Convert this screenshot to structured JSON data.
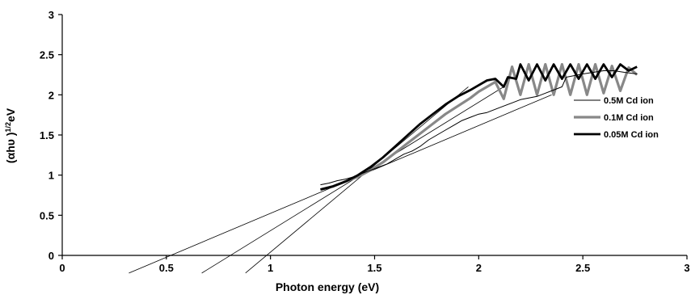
{
  "chart_data": {
    "type": "line",
    "xlabel": "Photon energy (eV)",
    "ylabel_main": "(αhυ )",
    "ylabel_sup": "1/2",
    "ylabel_unit": "eV",
    "xlim": [
      0,
      3
    ],
    "ylim": [
      0,
      3
    ],
    "xticks": [
      "0",
      "0.5",
      "1",
      "1.5",
      "2",
      "2.5",
      "3"
    ],
    "yticks": [
      "0",
      "0.5",
      "1",
      "1.5",
      "2",
      "2.5",
      "3"
    ],
    "grid": false,
    "legend_position": "right",
    "series": [
      {
        "name": "0.5M Cd ion",
        "color": "#000000",
        "width": "thin",
        "x": [
          1.24,
          1.28,
          1.32,
          1.36,
          1.4,
          1.44,
          1.48,
          1.52,
          1.56,
          1.6,
          1.64,
          1.68,
          1.72,
          1.76,
          1.8,
          1.84,
          1.88,
          1.92,
          1.96,
          2.0,
          2.04,
          2.08,
          2.12,
          2.16,
          2.2,
          2.24,
          2.28,
          2.32,
          2.36,
          2.4,
          2.42,
          2.46,
          2.5,
          2.55,
          2.6,
          2.65,
          2.7,
          2.76
        ],
        "y": [
          0.88,
          0.9,
          0.93,
          0.95,
          0.98,
          1.02,
          1.06,
          1.1,
          1.14,
          1.2,
          1.26,
          1.3,
          1.36,
          1.44,
          1.5,
          1.56,
          1.62,
          1.68,
          1.72,
          1.76,
          1.78,
          1.82,
          1.86,
          1.9,
          1.94,
          1.96,
          1.98,
          2.02,
          2.06,
          2.1,
          2.22,
          2.24,
          2.26,
          2.28,
          2.3,
          2.3,
          2.28,
          2.26
        ]
      },
      {
        "name": "0.1M Cd ion",
        "color": "#888888",
        "width": "medium",
        "x": [
          1.24,
          1.3,
          1.36,
          1.42,
          1.48,
          1.54,
          1.6,
          1.66,
          1.72,
          1.78,
          1.84,
          1.9,
          1.96,
          2.0,
          2.04,
          2.08,
          2.12,
          2.16,
          2.2,
          2.24,
          2.28,
          2.32,
          2.36,
          2.4,
          2.44,
          2.48,
          2.52,
          2.56,
          2.6,
          2.64,
          2.68,
          2.72,
          2.76
        ],
        "y": [
          0.82,
          0.86,
          0.92,
          0.98,
          1.06,
          1.16,
          1.28,
          1.4,
          1.52,
          1.64,
          1.76,
          1.86,
          1.96,
          2.04,
          2.1,
          2.16,
          1.95,
          2.35,
          2.0,
          2.38,
          2.0,
          2.38,
          2.0,
          2.38,
          2.0,
          2.38,
          2.0,
          2.38,
          2.02,
          2.36,
          2.05,
          2.34,
          2.25
        ]
      },
      {
        "name": "0.05M Cd ion",
        "color": "#000000",
        "width": "thick",
        "x": [
          1.24,
          1.3,
          1.36,
          1.42,
          1.48,
          1.54,
          1.6,
          1.66,
          1.72,
          1.78,
          1.84,
          1.9,
          1.96,
          2.0,
          2.04,
          2.08,
          2.12,
          2.14,
          2.18,
          2.2,
          2.24,
          2.28,
          2.32,
          2.36,
          2.4,
          2.44,
          2.48,
          2.52,
          2.56,
          2.6,
          2.64,
          2.68,
          2.72,
          2.76
        ],
        "y": [
          0.82,
          0.86,
          0.92,
          1.0,
          1.1,
          1.22,
          1.36,
          1.5,
          1.64,
          1.76,
          1.88,
          1.98,
          2.06,
          2.12,
          2.18,
          2.2,
          2.1,
          2.22,
          2.2,
          2.38,
          2.18,
          2.38,
          2.18,
          2.38,
          2.2,
          2.38,
          2.2,
          2.38,
          2.2,
          2.38,
          2.22,
          2.38,
          2.3,
          2.35
        ]
      }
    ],
    "extrapolation_lines": [
      {
        "x": [
          0.32,
          2.35
        ],
        "y": [
          -0.22,
          2.0
        ]
      },
      {
        "x": [
          0.67,
          2.12
        ],
        "y": [
          -0.22,
          2.1
        ]
      },
      {
        "x": [
          0.88,
          1.95
        ],
        "y": [
          -0.22,
          2.1
        ]
      }
    ]
  }
}
